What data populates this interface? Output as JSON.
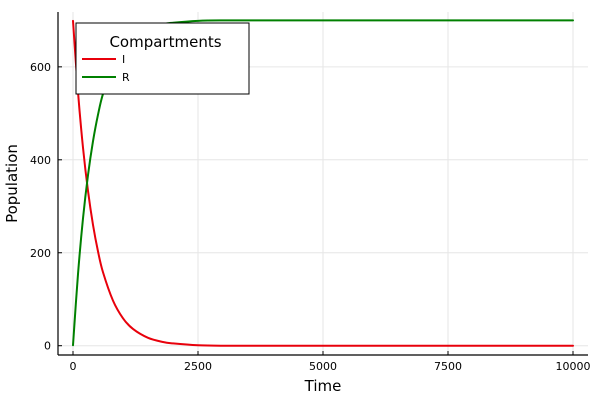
{
  "chart_data": {
    "type": "line",
    "title": "",
    "xlabel": "Time",
    "ylabel": "Population",
    "xlim": [
      -300,
      10300
    ],
    "ylim": [
      -20,
      718
    ],
    "xticks": [
      0,
      2500,
      5000,
      7500,
      10000
    ],
    "xtick_labels": [
      "0",
      "2500",
      "5000",
      "7500",
      "10000"
    ],
    "yticks": [
      0,
      200,
      400,
      600
    ],
    "ytick_labels": [
      "0",
      "200",
      "400",
      "600"
    ],
    "grid": true,
    "legend": {
      "title": "Compartments",
      "placement": "top-left"
    },
    "series": [
      {
        "name": "I",
        "color": "#e8000b",
        "x": [
          0,
          100,
          200,
          300,
          400,
          500,
          600,
          800,
          1000,
          1200,
          1500,
          1800,
          2000,
          2500,
          3000,
          4000,
          5000,
          7500,
          10000
        ],
        "y": [
          699,
          546,
          426,
          333,
          260,
          203,
          158,
          97,
          59,
          36,
          17,
          8,
          5,
          1,
          0,
          0,
          0,
          0,
          0
        ]
      },
      {
        "name": "R",
        "color": "#008000",
        "x": [
          0,
          100,
          200,
          300,
          400,
          500,
          600,
          800,
          1000,
          1200,
          1500,
          1800,
          2000,
          2500,
          3000,
          4000,
          5000,
          7500,
          10000
        ],
        "y": [
          1,
          154,
          274,
          367,
          440,
          497,
          542,
          603,
          641,
          664,
          683,
          692,
          695,
          699,
          700,
          700,
          700,
          700,
          700
        ]
      }
    ]
  }
}
